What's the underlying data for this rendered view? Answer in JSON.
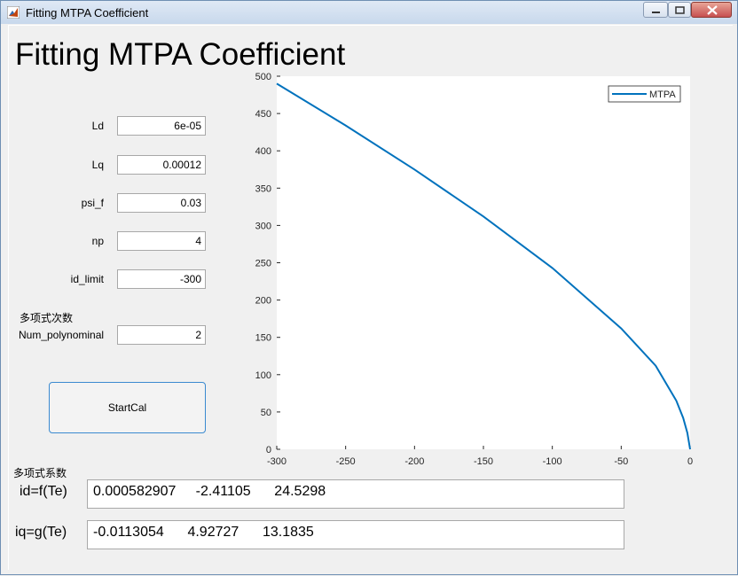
{
  "window": {
    "title": "Fitting MTPA Coefficient"
  },
  "header": {
    "title": "Fitting MTPA Coefficient"
  },
  "params": [
    {
      "label": "Ld",
      "value": "6e-05"
    },
    {
      "label": "Lq",
      "value": "0.00012"
    },
    {
      "label": "psi_f",
      "value": "0.03"
    },
    {
      "label": "np",
      "value": "4"
    },
    {
      "label": "id_limit",
      "value": "-300"
    }
  ],
  "poly": {
    "section_label": "多项式次数",
    "label": "Num_polynominal",
    "value": "2"
  },
  "start_button": {
    "label": "StartCal"
  },
  "coeff": {
    "section_label": "多项式系数",
    "id_label": "id=f(Te)",
    "id_value": "0.000582907     -2.41105      24.5298",
    "iq_label": "iq=g(Te)",
    "iq_value": "-0.0113054      4.92727      13.1835"
  },
  "chart_data": {
    "type": "line",
    "title": "",
    "xlabel": "",
    "ylabel": "",
    "xlim": [
      -300,
      0
    ],
    "ylim": [
      0,
      500
    ],
    "xticks": [
      -300,
      -250,
      -200,
      -150,
      -100,
      -50,
      0
    ],
    "yticks": [
      0,
      50,
      100,
      150,
      200,
      250,
      300,
      350,
      400,
      450,
      500
    ],
    "legend_position": "top-right",
    "grid": false,
    "series": [
      {
        "name": "MTPA",
        "color": "#0072bd",
        "x": [
          -300,
          -250,
          -200,
          -150,
          -100,
          -50,
          -25,
          -10,
          -5,
          -2,
          0
        ],
        "y": [
          490,
          434,
          375,
          312,
          243,
          162,
          112,
          65,
          42,
          22,
          0
        ]
      }
    ]
  }
}
